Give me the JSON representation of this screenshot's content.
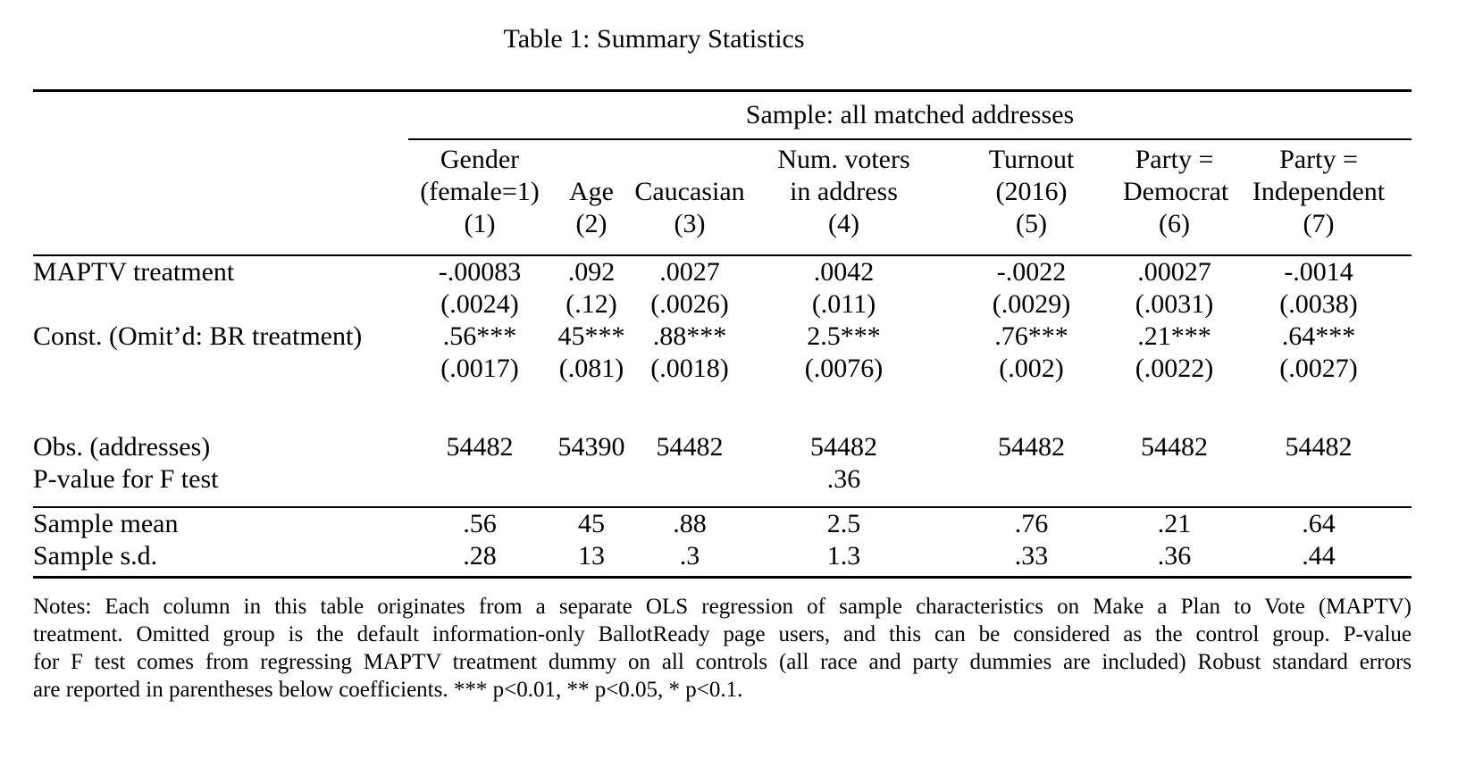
{
  "page": {
    "background": "#ffffff",
    "text_color": "#000000"
  },
  "table": {
    "title": "Table 1: Summary Statistics",
    "spanner_label": "Sample: all matched addresses",
    "columns": [
      {
        "line1": "Gender",
        "line2": "(female=1)",
        "number": "(1)"
      },
      {
        "line1": "",
        "line2": "Age",
        "number": "(2)"
      },
      {
        "line1": "",
        "line2": "Caucasian",
        "number": "(3)"
      },
      {
        "line1": "Num. voters",
        "line2": "in address",
        "number": "(4)"
      },
      {
        "line1": "Turnout",
        "line2": "(2016)",
        "number": "(5)"
      },
      {
        "line1": "Party =",
        "line2": "Democrat",
        "number": "(6)"
      },
      {
        "line1": "Party =",
        "line2": "Independent",
        "number": "(7)"
      }
    ],
    "body_rows": [
      {
        "type": "coef",
        "label": "MAPTV treatment",
        "values": [
          "-.00083",
          ".092",
          ".0027",
          ".0042",
          "-.0022",
          ".00027",
          "-.0014"
        ]
      },
      {
        "type": "se",
        "label": "",
        "values": [
          "(.0024)",
          "(.12)",
          "(.0026)",
          "(.011)",
          "(.0029)",
          "(.0031)",
          "(.0038)"
        ]
      },
      {
        "type": "coef",
        "label": "Const. (Omit’d: BR treatment)",
        "values": [
          ".56***",
          "45***",
          ".88***",
          "2.5***",
          ".76***",
          ".21***",
          ".64***"
        ]
      },
      {
        "type": "se",
        "label": "",
        "values": [
          "(.0017)",
          "(.081)",
          "(.0018)",
          "(.0076)",
          "(.002)",
          "(.0022)",
          "(.0027)"
        ]
      },
      {
        "type": "spacer",
        "label": "",
        "values": [
          "",
          "",
          "",
          "",
          "",
          "",
          ""
        ]
      },
      {
        "type": "stat",
        "label": "Obs. (addresses)",
        "values": [
          "54482",
          "54390",
          "54482",
          "54482",
          "54482",
          "54482",
          "54482"
        ]
      },
      {
        "type": "pvalue",
        "label": "P-value for F test",
        "values": [
          "",
          "",
          "",
          ".36",
          "",
          "",
          ""
        ]
      },
      {
        "type": "summary_first",
        "label": "Sample mean",
        "values": [
          ".56",
          "45",
          ".88",
          "2.5",
          ".76",
          ".21",
          ".64"
        ]
      },
      {
        "type": "summary",
        "label": "Sample s.d.",
        "values": [
          ".28",
          "13",
          ".3",
          "1.3",
          ".33",
          ".36",
          ".44"
        ]
      }
    ],
    "notes_lines": [
      "Notes: Each column in this table originates from a separate OLS regression of sample characteristics on Make a Plan to Vote (MAPTV)",
      "treatment. Omitted group is the default information-only BallotReady page users, and this can be considered as the control group. P-value",
      "for F test comes from regressing MAPTV treatment dummy on all controls (all race and party dummies are included) Robust standard errors",
      "are reported in parentheses below coefficients. *** p<0.01, ** p<0.05, * p<0.1."
    ]
  }
}
